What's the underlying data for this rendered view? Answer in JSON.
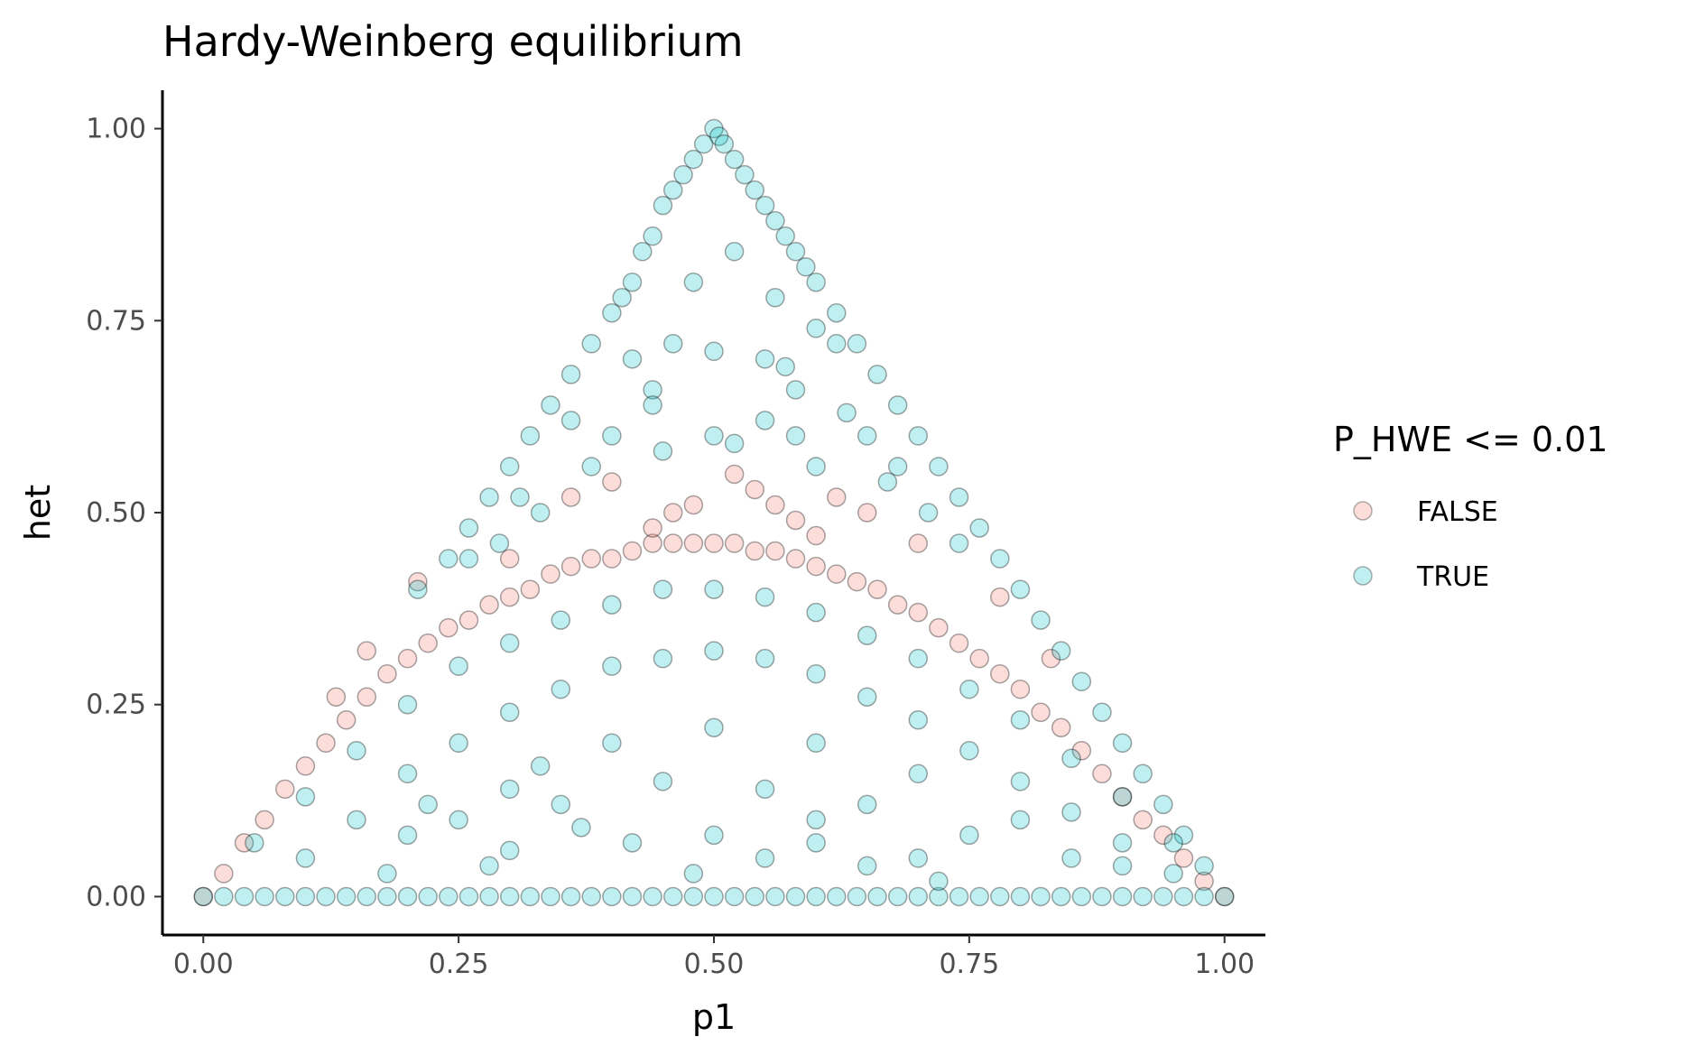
{
  "chart_data": {
    "type": "scatter",
    "title": "Hardy-Weinberg equilibrium",
    "xlabel": "p1",
    "ylabel": "het",
    "xlim": [
      -0.04,
      1.04
    ],
    "ylim": [
      -0.05,
      1.05
    ],
    "xticks": [
      "0.00",
      "0.25",
      "0.50",
      "0.75",
      "1.00"
    ],
    "yticks": [
      "0.00",
      "0.25",
      "0.50",
      "0.75",
      "1.00"
    ],
    "grid": false,
    "legend": {
      "title": "P_HWE <= 0.01",
      "position": "right",
      "entries": [
        "FALSE",
        "TRUE"
      ]
    },
    "series": [
      {
        "name": "FALSE",
        "color": "#F8766D",
        "points": [
          [
            0.02,
            0.03
          ],
          [
            0.04,
            0.07
          ],
          [
            0.06,
            0.1
          ],
          [
            0.08,
            0.14
          ],
          [
            0.1,
            0.17
          ],
          [
            0.12,
            0.2
          ],
          [
            0.14,
            0.23
          ],
          [
            0.16,
            0.26
          ],
          [
            0.18,
            0.29
          ],
          [
            0.2,
            0.31
          ],
          [
            0.22,
            0.33
          ],
          [
            0.24,
            0.35
          ],
          [
            0.26,
            0.36
          ],
          [
            0.28,
            0.38
          ],
          [
            0.3,
            0.39
          ],
          [
            0.32,
            0.4
          ],
          [
            0.34,
            0.42
          ],
          [
            0.36,
            0.43
          ],
          [
            0.38,
            0.44
          ],
          [
            0.4,
            0.44
          ],
          [
            0.42,
            0.45
          ],
          [
            0.44,
            0.46
          ],
          [
            0.46,
            0.46
          ],
          [
            0.48,
            0.46
          ],
          [
            0.5,
            0.46
          ],
          [
            0.52,
            0.46
          ],
          [
            0.54,
            0.45
          ],
          [
            0.56,
            0.45
          ],
          [
            0.58,
            0.44
          ],
          [
            0.6,
            0.43
          ],
          [
            0.62,
            0.42
          ],
          [
            0.64,
            0.41
          ],
          [
            0.66,
            0.4
          ],
          [
            0.68,
            0.38
          ],
          [
            0.7,
            0.37
          ],
          [
            0.72,
            0.35
          ],
          [
            0.74,
            0.33
          ],
          [
            0.76,
            0.31
          ],
          [
            0.78,
            0.29
          ],
          [
            0.8,
            0.27
          ],
          [
            0.82,
            0.24
          ],
          [
            0.84,
            0.22
          ],
          [
            0.86,
            0.19
          ],
          [
            0.88,
            0.16
          ],
          [
            0.9,
            0.13
          ],
          [
            0.92,
            0.1
          ],
          [
            0.94,
            0.08
          ],
          [
            0.96,
            0.05
          ],
          [
            0.98,
            0.02
          ],
          [
            1.0,
            0.0
          ],
          [
            0.0,
            0.0
          ],
          [
            0.58,
            0.49
          ],
          [
            0.6,
            0.47
          ],
          [
            0.44,
            0.48
          ],
          [
            0.52,
            0.55
          ],
          [
            0.54,
            0.53
          ],
          [
            0.48,
            0.51
          ],
          [
            0.4,
            0.54
          ],
          [
            0.36,
            0.52
          ],
          [
            0.56,
            0.51
          ],
          [
            0.21,
            0.41
          ],
          [
            0.65,
            0.5
          ],
          [
            0.62,
            0.52
          ],
          [
            0.46,
            0.5
          ],
          [
            0.3,
            0.44
          ],
          [
            0.13,
            0.26
          ],
          [
            0.16,
            0.32
          ],
          [
            0.7,
            0.46
          ],
          [
            0.78,
            0.39
          ],
          [
            0.83,
            0.31
          ]
        ]
      },
      {
        "name": "TRUE",
        "color": "#00BFC4",
        "points": [
          [
            0.5,
            1.0
          ],
          [
            0.505,
            0.99
          ],
          [
            0.51,
            0.98
          ],
          [
            0.52,
            0.96
          ],
          [
            0.53,
            0.94
          ],
          [
            0.54,
            0.92
          ],
          [
            0.55,
            0.9
          ],
          [
            0.56,
            0.88
          ],
          [
            0.57,
            0.86
          ],
          [
            0.58,
            0.84
          ],
          [
            0.59,
            0.82
          ],
          [
            0.6,
            0.8
          ],
          [
            0.62,
            0.76
          ],
          [
            0.64,
            0.72
          ],
          [
            0.66,
            0.68
          ],
          [
            0.68,
            0.64
          ],
          [
            0.7,
            0.6
          ],
          [
            0.72,
            0.56
          ],
          [
            0.74,
            0.52
          ],
          [
            0.76,
            0.48
          ],
          [
            0.78,
            0.44
          ],
          [
            0.8,
            0.4
          ],
          [
            0.82,
            0.36
          ],
          [
            0.84,
            0.32
          ],
          [
            0.86,
            0.28
          ],
          [
            0.88,
            0.24
          ],
          [
            0.9,
            0.2
          ],
          [
            0.92,
            0.16
          ],
          [
            0.94,
            0.12
          ],
          [
            0.96,
            0.08
          ],
          [
            0.98,
            0.04
          ],
          [
            1.0,
            0.0
          ],
          [
            0.49,
            0.98
          ],
          [
            0.48,
            0.96
          ],
          [
            0.47,
            0.94
          ],
          [
            0.46,
            0.92
          ],
          [
            0.45,
            0.9
          ],
          [
            0.44,
            0.86
          ],
          [
            0.43,
            0.84
          ],
          [
            0.42,
            0.8
          ],
          [
            0.41,
            0.78
          ],
          [
            0.4,
            0.76
          ],
          [
            0.38,
            0.72
          ],
          [
            0.36,
            0.68
          ],
          [
            0.34,
            0.64
          ],
          [
            0.32,
            0.6
          ],
          [
            0.3,
            0.56
          ],
          [
            0.28,
            0.52
          ],
          [
            0.26,
            0.48
          ],
          [
            0.24,
            0.44
          ],
          [
            0.21,
            0.4
          ],
          [
            0.0,
            0.0
          ],
          [
            0.02,
            0.0
          ],
          [
            0.04,
            0.0
          ],
          [
            0.06,
            0.0
          ],
          [
            0.08,
            0.0
          ],
          [
            0.1,
            0.0
          ],
          [
            0.12,
            0.0
          ],
          [
            0.14,
            0.0
          ],
          [
            0.16,
            0.0
          ],
          [
            0.18,
            0.0
          ],
          [
            0.2,
            0.0
          ],
          [
            0.22,
            0.0
          ],
          [
            0.24,
            0.0
          ],
          [
            0.26,
            0.0
          ],
          [
            0.28,
            0.0
          ],
          [
            0.3,
            0.0
          ],
          [
            0.32,
            0.0
          ],
          [
            0.34,
            0.0
          ],
          [
            0.36,
            0.0
          ],
          [
            0.38,
            0.0
          ],
          [
            0.4,
            0.0
          ],
          [
            0.42,
            0.0
          ],
          [
            0.44,
            0.0
          ],
          [
            0.46,
            0.0
          ],
          [
            0.48,
            0.0
          ],
          [
            0.5,
            0.0
          ],
          [
            0.52,
            0.0
          ],
          [
            0.54,
            0.0
          ],
          [
            0.56,
            0.0
          ],
          [
            0.58,
            0.0
          ],
          [
            0.6,
            0.0
          ],
          [
            0.62,
            0.0
          ],
          [
            0.64,
            0.0
          ],
          [
            0.66,
            0.0
          ],
          [
            0.68,
            0.0
          ],
          [
            0.7,
            0.0
          ],
          [
            0.72,
            0.0
          ],
          [
            0.74,
            0.0
          ],
          [
            0.76,
            0.0
          ],
          [
            0.78,
            0.0
          ],
          [
            0.8,
            0.0
          ],
          [
            0.82,
            0.0
          ],
          [
            0.84,
            0.0
          ],
          [
            0.86,
            0.0
          ],
          [
            0.88,
            0.0
          ],
          [
            0.9,
            0.0
          ],
          [
            0.92,
            0.0
          ],
          [
            0.94,
            0.0
          ],
          [
            0.96,
            0.0
          ],
          [
            0.98,
            0.0
          ],
          [
            0.05,
            0.07
          ],
          [
            0.1,
            0.13
          ],
          [
            0.15,
            0.19
          ],
          [
            0.2,
            0.25
          ],
          [
            0.25,
            0.3
          ],
          [
            0.3,
            0.33
          ],
          [
            0.35,
            0.36
          ],
          [
            0.4,
            0.38
          ],
          [
            0.45,
            0.4
          ],
          [
            0.5,
            0.4
          ],
          [
            0.55,
            0.39
          ],
          [
            0.6,
            0.37
          ],
          [
            0.65,
            0.34
          ],
          [
            0.7,
            0.31
          ],
          [
            0.75,
            0.27
          ],
          [
            0.8,
            0.23
          ],
          [
            0.85,
            0.18
          ],
          [
            0.9,
            0.13
          ],
          [
            0.95,
            0.07
          ],
          [
            0.1,
            0.05
          ],
          [
            0.15,
            0.1
          ],
          [
            0.2,
            0.16
          ],
          [
            0.25,
            0.2
          ],
          [
            0.3,
            0.24
          ],
          [
            0.35,
            0.27
          ],
          [
            0.4,
            0.3
          ],
          [
            0.45,
            0.31
          ],
          [
            0.5,
            0.32
          ],
          [
            0.55,
            0.31
          ],
          [
            0.6,
            0.29
          ],
          [
            0.65,
            0.26
          ],
          [
            0.7,
            0.23
          ],
          [
            0.75,
            0.19
          ],
          [
            0.8,
            0.15
          ],
          [
            0.85,
            0.11
          ],
          [
            0.9,
            0.07
          ],
          [
            0.95,
            0.03
          ],
          [
            0.2,
            0.08
          ],
          [
            0.3,
            0.14
          ],
          [
            0.4,
            0.2
          ],
          [
            0.5,
            0.22
          ],
          [
            0.6,
            0.2
          ],
          [
            0.7,
            0.16
          ],
          [
            0.8,
            0.1
          ],
          [
            0.9,
            0.04
          ],
          [
            0.25,
            0.1
          ],
          [
            0.35,
            0.12
          ],
          [
            0.45,
            0.15
          ],
          [
            0.55,
            0.14
          ],
          [
            0.65,
            0.12
          ],
          [
            0.75,
            0.08
          ],
          [
            0.85,
            0.05
          ],
          [
            0.3,
            0.06
          ],
          [
            0.5,
            0.08
          ],
          [
            0.6,
            0.07
          ],
          [
            0.7,
            0.05
          ],
          [
            0.33,
            0.17
          ],
          [
            0.37,
            0.09
          ],
          [
            0.55,
            0.05
          ],
          [
            0.6,
            0.1
          ],
          [
            0.65,
            0.04
          ],
          [
            0.72,
            0.02
          ],
          [
            0.48,
            0.03
          ],
          [
            0.42,
            0.07
          ],
          [
            0.22,
            0.12
          ],
          [
            0.28,
            0.04
          ],
          [
            0.18,
            0.03
          ],
          [
            0.5,
            0.6
          ],
          [
            0.45,
            0.58
          ],
          [
            0.55,
            0.62
          ],
          [
            0.52,
            0.59
          ],
          [
            0.58,
            0.66
          ],
          [
            0.62,
            0.72
          ],
          [
            0.44,
            0.66
          ],
          [
            0.4,
            0.6
          ],
          [
            0.36,
            0.62
          ],
          [
            0.46,
            0.72
          ],
          [
            0.42,
            0.7
          ],
          [
            0.48,
            0.8
          ],
          [
            0.52,
            0.84
          ],
          [
            0.56,
            0.78
          ],
          [
            0.6,
            0.74
          ],
          [
            0.65,
            0.6
          ],
          [
            0.68,
            0.56
          ],
          [
            0.55,
            0.7
          ],
          [
            0.38,
            0.56
          ],
          [
            0.33,
            0.5
          ],
          [
            0.29,
            0.46
          ],
          [
            0.26,
            0.44
          ],
          [
            0.31,
            0.52
          ],
          [
            0.44,
            0.64
          ],
          [
            0.5,
            0.71
          ],
          [
            0.57,
            0.69
          ],
          [
            0.63,
            0.63
          ],
          [
            0.67,
            0.54
          ],
          [
            0.71,
            0.5
          ],
          [
            0.74,
            0.46
          ],
          [
            0.58,
            0.6
          ],
          [
            0.6,
            0.56
          ]
        ]
      }
    ]
  }
}
